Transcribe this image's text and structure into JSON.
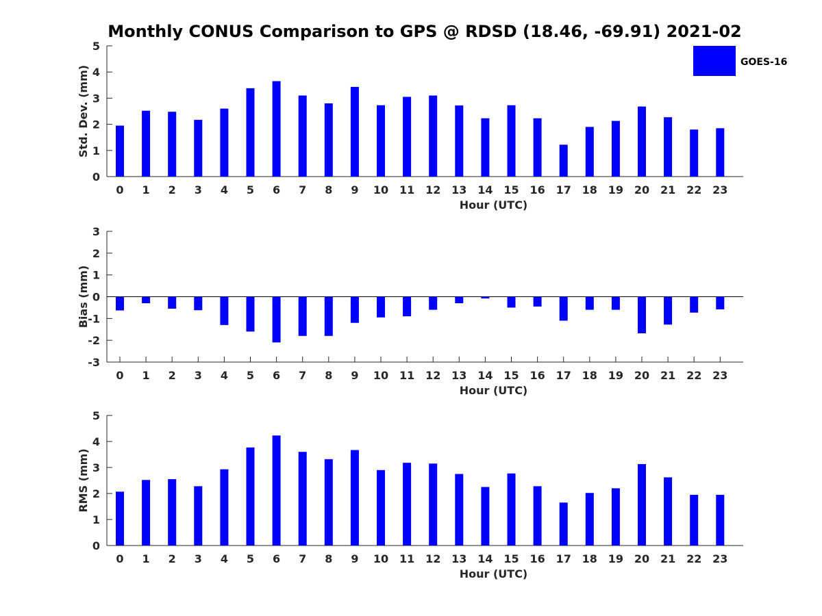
{
  "title": "Monthly CONUS Comparison to GPS @ RDSD (18.46, -69.91) 2021-02",
  "legend": {
    "label": "GOES-16",
    "color": "#0000FF"
  },
  "chart_data": [
    {
      "type": "bar",
      "xlabel": "Hour (UTC)",
      "ylabel": "Std. Dev. (mm)",
      "ylim": [
        0,
        5
      ],
      "yticks": [
        "0",
        "1",
        "2",
        "3",
        "4",
        "5"
      ],
      "categories": [
        "0",
        "1",
        "2",
        "3",
        "4",
        "5",
        "6",
        "7",
        "8",
        "9",
        "10",
        "11",
        "12",
        "13",
        "14",
        "15",
        "16",
        "17",
        "18",
        "19",
        "20",
        "21",
        "22",
        "23"
      ],
      "series": [
        {
          "name": "GOES-16",
          "values": [
            1.95,
            2.52,
            2.48,
            2.17,
            2.6,
            3.38,
            3.65,
            3.1,
            2.8,
            3.43,
            2.73,
            3.05,
            3.1,
            2.72,
            2.23,
            2.73,
            2.23,
            1.22,
            1.9,
            2.13,
            2.68,
            2.27,
            1.8,
            1.85
          ]
        }
      ]
    },
    {
      "type": "bar",
      "xlabel": "Hour (UTC)",
      "ylabel": "Bias (mm)",
      "ylim": [
        -3,
        3
      ],
      "yticks": [
        "-3",
        "-2",
        "-1",
        "0",
        "1",
        "2",
        "3"
      ],
      "categories": [
        "0",
        "1",
        "2",
        "3",
        "4",
        "5",
        "6",
        "7",
        "8",
        "9",
        "10",
        "11",
        "12",
        "13",
        "14",
        "15",
        "16",
        "17",
        "18",
        "19",
        "20",
        "21",
        "22",
        "23"
      ],
      "series": [
        {
          "name": "GOES-16",
          "values": [
            -0.63,
            -0.3,
            -0.55,
            -0.62,
            -1.3,
            -1.6,
            -2.1,
            -1.8,
            -1.8,
            -1.2,
            -0.95,
            -0.9,
            -0.6,
            -0.3,
            -0.08,
            -0.5,
            -0.45,
            -1.1,
            -0.6,
            -0.6,
            -1.68,
            -1.28,
            -0.73,
            -0.58
          ]
        }
      ]
    },
    {
      "type": "bar",
      "xlabel": "Hour (UTC)",
      "ylabel": "RMS (mm)",
      "ylim": [
        0,
        5
      ],
      "yticks": [
        "0",
        "1",
        "2",
        "3",
        "4",
        "5"
      ],
      "categories": [
        "0",
        "1",
        "2",
        "3",
        "4",
        "5",
        "6",
        "7",
        "8",
        "9",
        "10",
        "11",
        "12",
        "13",
        "14",
        "15",
        "16",
        "17",
        "18",
        "19",
        "20",
        "21",
        "22",
        "23"
      ],
      "series": [
        {
          "name": "GOES-16",
          "values": [
            2.07,
            2.52,
            2.55,
            2.28,
            2.93,
            3.77,
            4.23,
            3.6,
            3.32,
            3.67,
            2.9,
            3.18,
            3.15,
            2.75,
            2.25,
            2.77,
            2.28,
            1.65,
            2.02,
            2.2,
            3.13,
            2.62,
            1.95,
            1.95
          ]
        }
      ]
    }
  ]
}
